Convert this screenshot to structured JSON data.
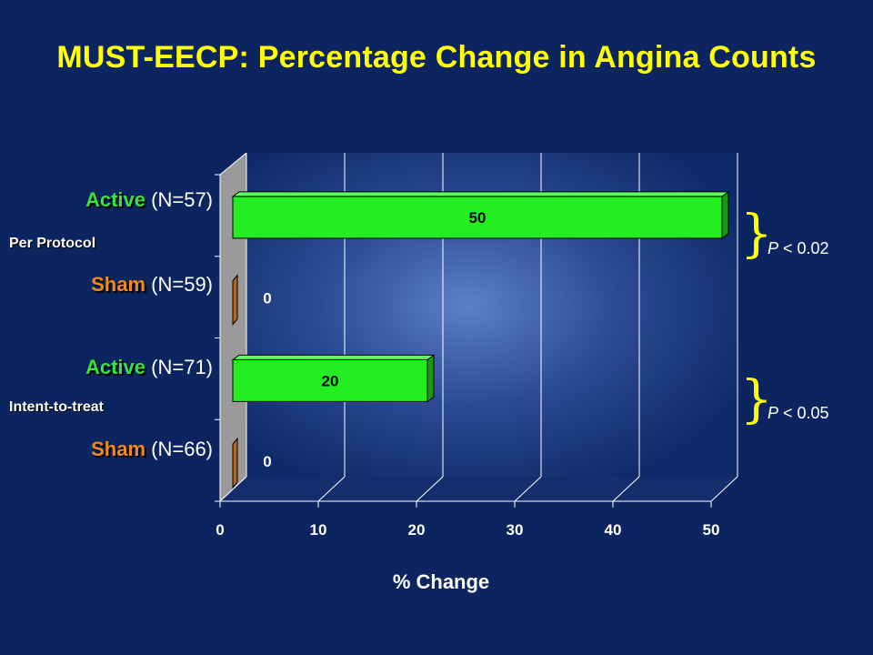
{
  "chart_data": {
    "type": "bar",
    "orientation": "horizontal",
    "title": "MUST-EECP: Percentage Change in Angina Counts",
    "xlabel": "% Change",
    "xlim": [
      0,
      50
    ],
    "xticks": [
      "0",
      "10",
      "20",
      "30",
      "40",
      "50"
    ],
    "grid": true,
    "categories": [
      {
        "group": "Active",
        "n": "(N=57)"
      },
      {
        "group": "Sham",
        "n": "(N=59)"
      },
      {
        "group": "Active",
        "n": "(N=71)"
      },
      {
        "group": "Sham",
        "n": "(N=66)"
      }
    ],
    "values": [
      50,
      0,
      20,
      0
    ],
    "value_labels": [
      "50",
      "0",
      "20",
      "0"
    ],
    "colors": {
      "active": "#22ee22",
      "sham": "#b8641a"
    },
    "groups": [
      {
        "label": "Per Protocol",
        "p_value": "P < 0.02",
        "p_letter": "P",
        "p_rest": " < 0.02"
      },
      {
        "label": "Intent-to-treat",
        "p_value": "P < 0.05",
        "p_letter": "P",
        "p_rest": " < 0.05"
      }
    ]
  }
}
